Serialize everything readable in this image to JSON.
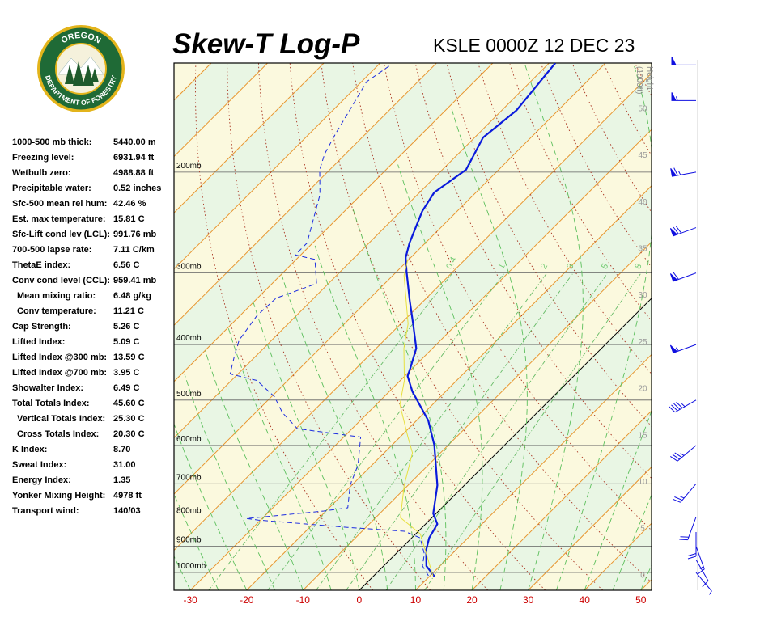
{
  "logo": {
    "top_text": "OREGON",
    "bottom_text": "DEPARTMENT OF FORESTRY"
  },
  "stats": [
    {
      "label": "1000-500 mb thick:",
      "value": "5440.00 m"
    },
    {
      "label": "Freezing level:",
      "value": "6931.94 ft"
    },
    {
      "label": "Wetbulb zero:",
      "value": "4988.88 ft"
    },
    {
      "label": "Precipitable water:",
      "value": "0.52 inches"
    },
    {
      "label": "Sfc-500 mean rel hum:",
      "value": "42.46 %"
    },
    {
      "label": "Est. max temperature:",
      "value": "15.81 C"
    },
    {
      "label": "Sfc-Lift cond lev (LCL):",
      "value": "991.76 mb"
    },
    {
      "label": "700-500 lapse rate:",
      "value": "7.11 C/km"
    },
    {
      "label": "ThetaE index:",
      "value": "6.56 C"
    },
    {
      "label": "Conv cond level (CCL):",
      "value": "959.41 mb"
    },
    {
      "label": "Mean mixing ratio:",
      "value": "6.48 g/kg"
    },
    {
      "label": "Conv temperature:",
      "value": "11.21 C"
    },
    {
      "label": "Cap Strength:",
      "value": "5.26 C"
    },
    {
      "label": "Lifted Index:",
      "value": "5.09 C"
    },
    {
      "label": "Lifted Index @300 mb:",
      "value": "13.59 C"
    },
    {
      "label": "Lifted Index @700 mb:",
      "value": "3.95 C"
    },
    {
      "label": "Showalter Index:",
      "value": "6.49 C"
    },
    {
      "label": "Total Totals Index:",
      "value": "45.60 C"
    },
    {
      "label": "Vertical Totals Index:",
      "value": "25.30 C"
    },
    {
      "label": "Cross Totals Index:",
      "value": "20.30 C"
    },
    {
      "label": "K Index:",
      "value": "8.70"
    },
    {
      "label": "Sweat Index:",
      "value": "31.00"
    },
    {
      "label": "Energy Index:",
      "value": "1.35"
    },
    {
      "label": "Yonker Mixing Height:",
      "value": "4978 ft"
    },
    {
      "label": "Transport wind:",
      "value": "140/03"
    }
  ],
  "chart_data": {
    "type": "skew-t",
    "title": "Skew-T Log-P",
    "subtitle": "KSLE 0000Z 12 DEC 23",
    "xlim": [
      -32.9,
      51.9
    ],
    "xticks": [
      -30,
      -20,
      -10,
      0,
      10,
      20,
      30,
      40,
      50
    ],
    "xtick_color": "#cc0000",
    "ylim": [
      1074,
      129
    ],
    "yscale": "log",
    "yticks": [
      {
        "value": 1000,
        "label": "1000mb"
      },
      {
        "value": 900,
        "label": "900mb"
      },
      {
        "value": 800,
        "label": "800mb"
      },
      {
        "value": 700,
        "label": "700mb"
      },
      {
        "value": 600,
        "label": "600mb"
      },
      {
        "value": 500,
        "label": "500mb"
      },
      {
        "value": 400,
        "label": "400mb"
      },
      {
        "value": 300,
        "label": "300mb"
      },
      {
        "value": 200,
        "label": "200mb"
      }
    ],
    "skew_degrees": 45,
    "height_axis_label": [
      "Height",
      "(1000ft)"
    ],
    "height_lim": [
      -1.7,
      54.8
    ],
    "height_ticks": [
      0,
      5,
      10,
      15,
      20,
      25,
      30,
      35,
      40,
      45,
      50
    ],
    "mixing_ratios": [
      0.4,
      1,
      2,
      3,
      5,
      8
    ],
    "series": [
      {
        "color": "#0a1adc",
        "width": 2.2,
        "dash": false,
        "pressure": [
          1016,
          974,
          913,
          870,
          823,
          789,
          704,
          599,
          543,
          483,
          454,
          440,
          406,
          368,
          334,
          298,
          282,
          266,
          234,
          217,
          198,
          174,
          156,
          129
        ],
        "temperature": [
          10.9,
          7.6,
          4.7,
          3.1,
          2.1,
          -0.5,
          -4.8,
          -12.5,
          -17.9,
          -25.9,
          -29.5,
          -30.4,
          -32.9,
          -37.8,
          -42.7,
          -48.3,
          -50.9,
          -52.8,
          -56.2,
          -57.4,
          -55.8,
          -58.5,
          -57.4,
          -58.9
        ]
      },
      {
        "color": "#1a2ae0",
        "width": 1,
        "dash": true,
        "pressure": [
          1013,
          974,
          928,
          870,
          847,
          834,
          810,
          805,
          781,
          771,
          704,
          649,
          580,
          561,
          526,
          493,
          462,
          450,
          419,
          393,
          356,
          332,
          313,
          284,
          279,
          266,
          241,
          219,
          198,
          186,
          171,
          158,
          139,
          130
        ],
        "temperature": [
          9.7,
          6.9,
          5.1,
          1.5,
          -2.5,
          -13.3,
          -30.4,
          -32.8,
          -20.4,
          -16.7,
          -20.3,
          -22.5,
          -27.0,
          -39.7,
          -45.2,
          -49.5,
          -55.5,
          -61.4,
          -63.8,
          -65.8,
          -67.0,
          -66.7,
          -62.1,
          -66.7,
          -71.0,
          -71.0,
          -74.2,
          -77.3,
          -81.8,
          -83.7,
          -85.4,
          -86.8,
          -89.1,
          -87.8
        ]
      },
      {
        "color": "#e8e040",
        "width": 1,
        "dash": false,
        "pressure": [
          1013,
          856,
          802,
          704,
          618,
          580,
          509,
          462,
          406,
          368,
          303,
          284
        ],
        "temperature": [
          10.5,
          0.8,
          -5.6,
          -10.7,
          -15.0,
          -18.6,
          -25.8,
          -29.3,
          -35.1,
          -38.7,
          -48.0,
          -50.2
        ]
      }
    ],
    "winds": {
      "color": "#1010e0",
      "pressure": [
        1000,
        950,
        900,
        850,
        800,
        700,
        600,
        500,
        400,
        300,
        250,
        200,
        150,
        130
      ],
      "direction": [
        140,
        150,
        160,
        180,
        200,
        220,
        230,
        240,
        250,
        250,
        250,
        260,
        270,
        270
      ],
      "speed": [
        5,
        10,
        15,
        20,
        20,
        25,
        35,
        45,
        55,
        60,
        70,
        65,
        55,
        50
      ]
    }
  }
}
